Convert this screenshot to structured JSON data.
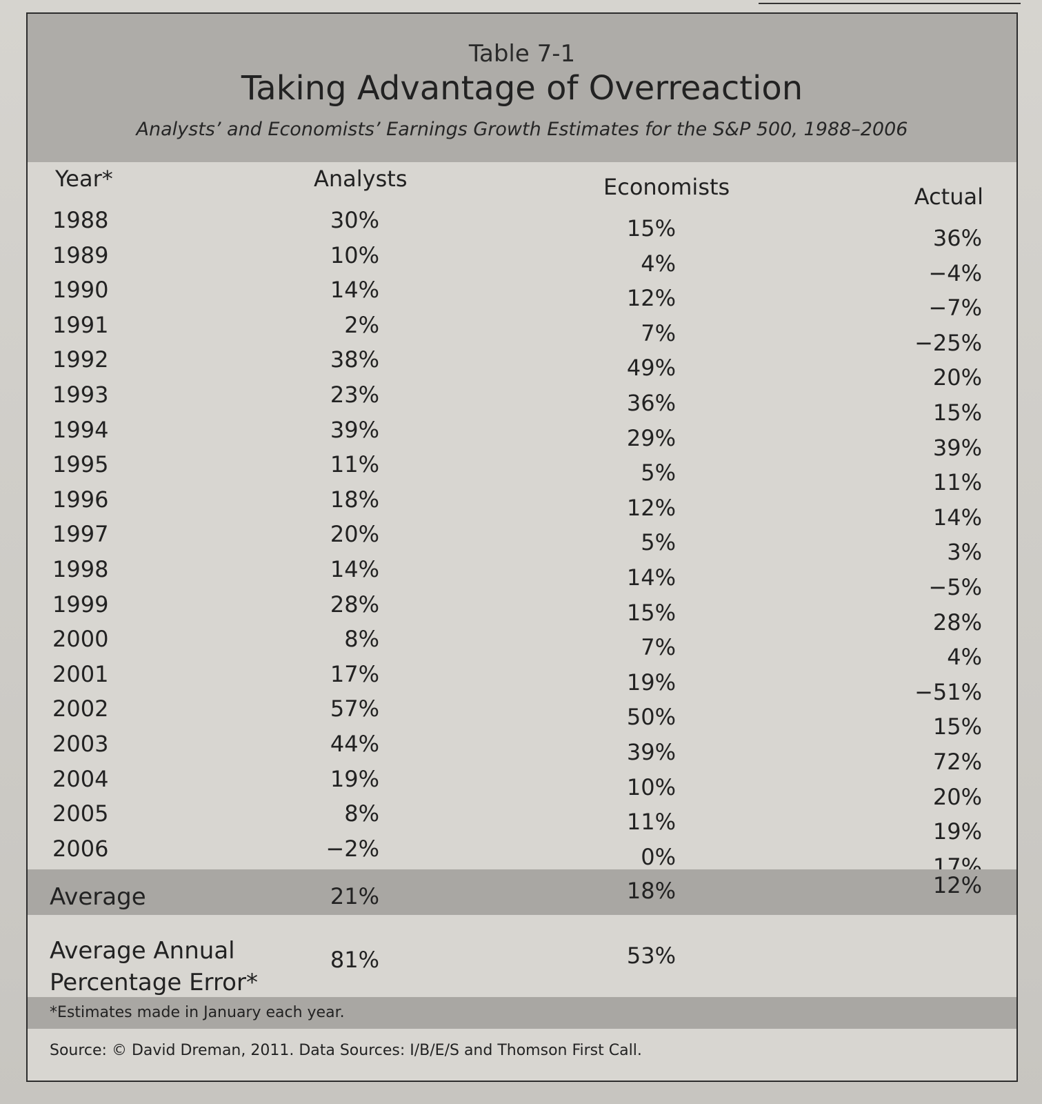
{
  "table": {
    "number": "Table 7-1",
    "title": "Taking Advantage of Overreaction",
    "subtitle": "Analysts’ and Economists’ Earnings Growth Estimates for the S&P 500, 1988–2006"
  },
  "columns": {
    "year": "Year*",
    "analysts": "Analysts",
    "economists": "Economists",
    "actual": "Actual"
  },
  "rows": [
    {
      "year": "1988",
      "analysts": "30%",
      "economists": "15%",
      "actual": "36%"
    },
    {
      "year": "1989",
      "analysts": "10%",
      "economists": "4%",
      "actual": "−4%"
    },
    {
      "year": "1990",
      "analysts": "14%",
      "economists": "12%",
      "actual": "−7%"
    },
    {
      "year": "1991",
      "analysts": "2%",
      "economists": "7%",
      "actual": "−25%"
    },
    {
      "year": "1992",
      "analysts": "38%",
      "economists": "49%",
      "actual": "20%"
    },
    {
      "year": "1993",
      "analysts": "23%",
      "economists": "36%",
      "actual": "15%"
    },
    {
      "year": "1994",
      "analysts": "39%",
      "economists": "29%",
      "actual": "39%"
    },
    {
      "year": "1995",
      "analysts": "11%",
      "economists": "5%",
      "actual": "11%"
    },
    {
      "year": "1996",
      "analysts": "18%",
      "economists": "12%",
      "actual": "14%"
    },
    {
      "year": "1997",
      "analysts": "20%",
      "economists": "5%",
      "actual": "3%"
    },
    {
      "year": "1998",
      "analysts": "14%",
      "economists": "14%",
      "actual": "−5%"
    },
    {
      "year": "1999",
      "analysts": "28%",
      "economists": "15%",
      "actual": "28%"
    },
    {
      "year": "2000",
      "analysts": "8%",
      "economists": "7%",
      "actual": "4%"
    },
    {
      "year": "2001",
      "analysts": "17%",
      "economists": "19%",
      "actual": "−51%"
    },
    {
      "year": "2002",
      "analysts": "57%",
      "economists": "50%",
      "actual": "15%"
    },
    {
      "year": "2003",
      "analysts": "44%",
      "economists": "39%",
      "actual": "72%"
    },
    {
      "year": "2004",
      "analysts": "19%",
      "economists": "10%",
      "actual": "20%"
    },
    {
      "year": "2005",
      "analysts": "8%",
      "economists": "11%",
      "actual": "19%"
    },
    {
      "year": "2006",
      "analysts": "−2%",
      "economists": "0%",
      "actual": "17%"
    }
  ],
  "average": {
    "label": "Average",
    "analysts": "21%",
    "economists": "18%",
    "actual": "12%"
  },
  "error": {
    "label": "Average Annual Percentage Error*",
    "analysts": "81%",
    "economists": "53%"
  },
  "footnote": "*Estimates made in January each year.",
  "source": "Source: © David Dreman, 2011. Data Sources: I/B/E/S and Thomson First Call."
}
